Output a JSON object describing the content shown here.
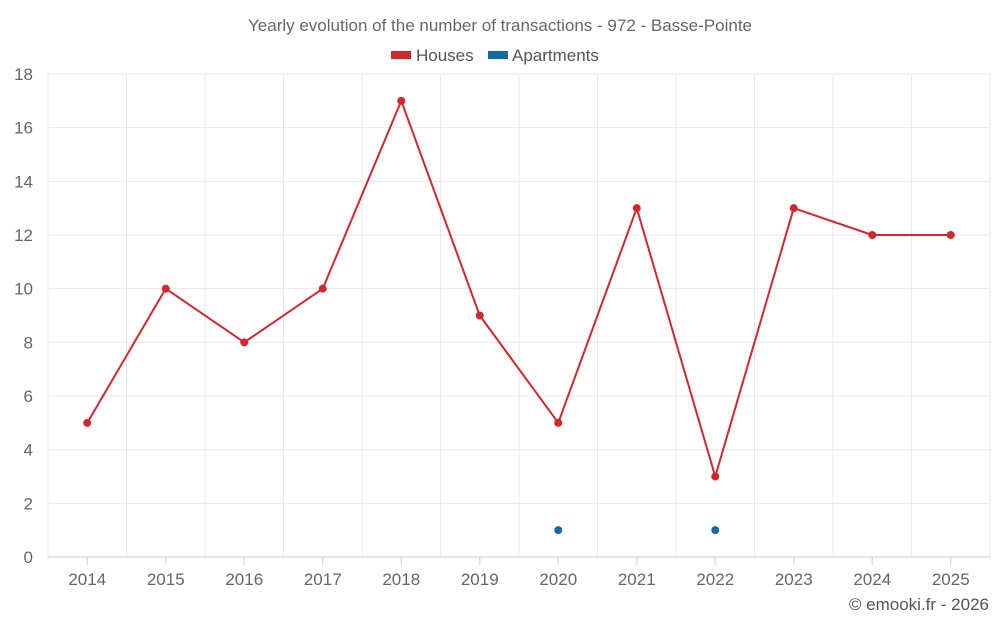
{
  "chart_data": {
    "type": "line",
    "title": "Yearly evolution of the number of transactions - 972 - Basse-Pointe",
    "categories": [
      "2014",
      "2015",
      "2016",
      "2017",
      "2018",
      "2019",
      "2020",
      "2021",
      "2022",
      "2023",
      "2024",
      "2025"
    ],
    "series": [
      {
        "name": "Houses",
        "color": "#d0282e",
        "values": [
          5,
          10,
          8,
          10,
          17,
          9,
          5,
          13,
          3,
          13,
          12,
          12
        ]
      },
      {
        "name": "Apartments",
        "color": "#0f6aa6",
        "values": [
          null,
          null,
          null,
          null,
          null,
          null,
          1,
          null,
          1,
          null,
          null,
          null
        ]
      }
    ],
    "ylim": [
      0,
      18
    ],
    "yticks": [
      0,
      2,
      4,
      6,
      8,
      10,
      12,
      14,
      16,
      18
    ],
    "xlabel": "",
    "ylabel": "",
    "grid": true,
    "legend": "top-center"
  },
  "credit": "© emooki.fr - 2026"
}
